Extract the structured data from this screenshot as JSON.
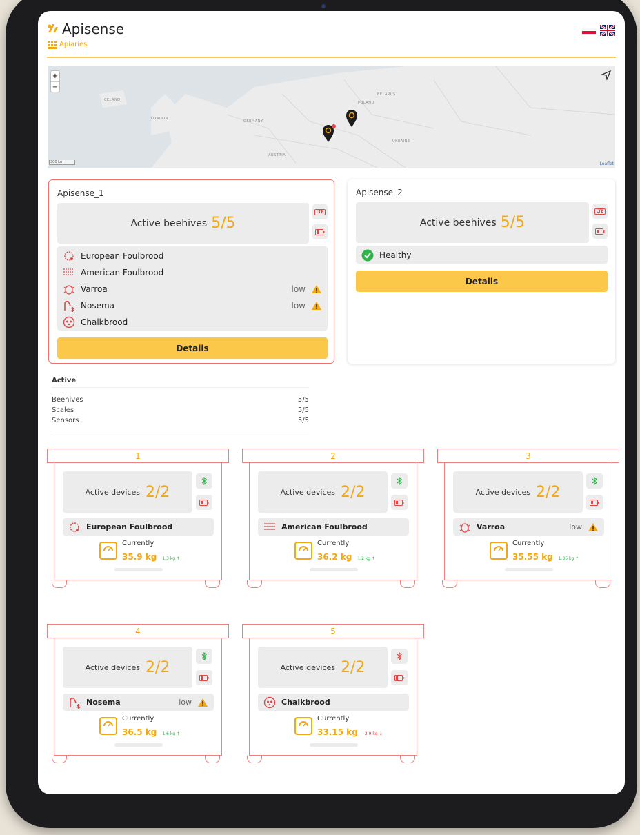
{
  "header": {
    "brand": "Apisense",
    "nav": "Apiaries"
  },
  "map": {
    "zoom_in": "+",
    "zoom_out": "−",
    "labels": [
      "ICELAND",
      "LONDON",
      "GERMANY",
      "POLAND",
      "BELARUS",
      "UKRAINE",
      "AUSTRIA"
    ],
    "scale": "300 km",
    "attribution": "Leaflet"
  },
  "apiaries": [
    {
      "name": "Apisense_1",
      "alert": true,
      "active_label": "Active beehives",
      "active": "5/5",
      "connectivity": "LTE",
      "conditions": [
        {
          "name": "European Foulbrood"
        },
        {
          "name": "American Foulbrood"
        },
        {
          "name": "Varroa",
          "level": "low"
        },
        {
          "name": "Nosema",
          "level": "low"
        },
        {
          "name": "Chalkbrood"
        }
      ],
      "button": "Details"
    },
    {
      "name": "Apisense_2",
      "alert": false,
      "active_label": "Active beehives",
      "active": "5/5",
      "connectivity": "LTE",
      "conditions": [
        {
          "name": "Healthy"
        }
      ],
      "button": "Details"
    }
  ],
  "summary": {
    "title": "Active",
    "rows": [
      [
        "Beehives",
        "5/5"
      ],
      [
        "Scales",
        "5/5"
      ],
      [
        "Sensors",
        "5/5"
      ]
    ]
  },
  "hives": [
    {
      "number": "1",
      "active_label": "Active devices",
      "active": "2/2",
      "condition": "European Foulbrood",
      "current_label": "Currently",
      "weight": "35.9 kg",
      "change": "1.3 kg ↑",
      "change_color": "#2fb34a"
    },
    {
      "number": "2",
      "active_label": "Active devices",
      "active": "2/2",
      "condition": "American Foulbrood",
      "current_label": "Currently",
      "weight": "36.2 kg",
      "change": "1.2 kg ↑",
      "change_color": "#2fb34a"
    },
    {
      "number": "3",
      "active_label": "Active devices",
      "active": "2/2",
      "condition": "Varroa",
      "level": "low",
      "current_label": "Currently",
      "weight": "35.55 kg",
      "change": "1.35 kg ↑",
      "change_color": "#2fb34a"
    },
    {
      "number": "4",
      "active_label": "Active devices",
      "active": "2/2",
      "condition": "Nosema",
      "level": "low",
      "current_label": "Currently",
      "weight": "36.5 kg",
      "change": "1.6 kg ↑",
      "change_color": "#2fb34a"
    },
    {
      "number": "5",
      "active_label": "Active devices",
      "active": "2/2",
      "condition": "Chalkbrood",
      "current_label": "Currently",
      "weight": "33.15 kg",
      "change": "-2.9 kg ↓",
      "change_color": "#e04848"
    }
  ]
}
